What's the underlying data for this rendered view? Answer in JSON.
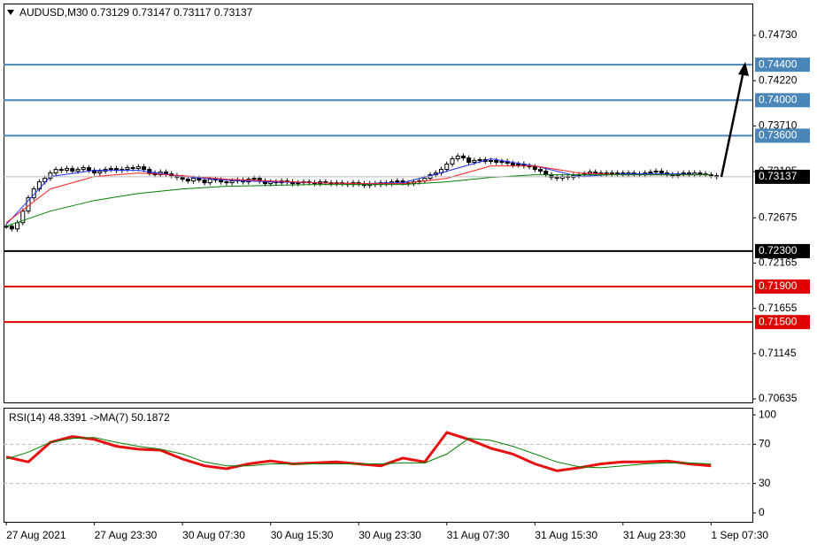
{
  "chart_data": [
    {
      "type": "candlestick",
      "title": "AUDUSD,M30  0.73129 0.73147 0.73117 0.73137",
      "xlim": [
        -0.5,
        135.5
      ],
      "ylim": [
        0.70595,
        0.75089
      ],
      "yticks": [
        {
          "value": 0.7473,
          "label": "0.74730"
        },
        {
          "value": 0.7422,
          "label": "0.74220"
        },
        {
          "value": 0.7371,
          "label": "0.73710"
        },
        {
          "value": 0.73195,
          "label": "0.73195"
        },
        {
          "value": 0.72675,
          "label": "0.72675"
        },
        {
          "value": 0.72165,
          "label": "0.72165"
        },
        {
          "value": 0.71655,
          "label": "0.71655"
        },
        {
          "value": 0.71145,
          "label": "0.71145"
        },
        {
          "value": 0.70635,
          "label": "0.70635"
        }
      ],
      "levels": [
        {
          "value": 0.744,
          "label": "0.74400",
          "color": "#4a86b8"
        },
        {
          "value": 0.74,
          "label": "0.74000",
          "color": "#4a86b8"
        },
        {
          "value": 0.736,
          "label": "0.73600",
          "color": "#4a86b8"
        },
        {
          "value": 0.723,
          "label": "0.72300",
          "color": "#000000"
        },
        {
          "value": 0.719,
          "label": "0.71900",
          "color": "#e00000"
        },
        {
          "value": 0.715,
          "label": "0.71500",
          "color": "#e00000"
        }
      ],
      "last_price": {
        "value": 0.73137,
        "label": "0.73137"
      },
      "series": [
        {
          "type": "candlestick",
          "color": "#000000",
          "values": [
            0.7258,
            0.7255,
            0.7262,
            0.7275,
            0.729,
            0.73,
            0.7308,
            0.7312,
            0.7318,
            0.7322,
            0.7321,
            0.7323,
            0.732,
            0.7322,
            0.7324,
            0.7321,
            0.7318,
            0.732,
            0.7322,
            0.7323,
            0.7321,
            0.7322,
            0.7324,
            0.7323,
            0.7325,
            0.7322,
            0.7318,
            0.7316,
            0.7319,
            0.7317,
            0.7315,
            0.7313,
            0.7311,
            0.7309,
            0.7312,
            0.731,
            0.7307,
            0.7311,
            0.731,
            0.7308,
            0.7307,
            0.7309,
            0.731,
            0.7308,
            0.7311,
            0.7312,
            0.7309,
            0.7306,
            0.7308,
            0.7307,
            0.7309,
            0.7308,
            0.7306,
            0.7307,
            0.7308,
            0.7307,
            0.7306,
            0.7308,
            0.7307,
            0.7306,
            0.7307,
            0.7306,
            0.7305,
            0.7307,
            0.7306,
            0.7304,
            0.7306,
            0.7305,
            0.7307,
            0.7306,
            0.7308,
            0.7309,
            0.7307,
            0.7306,
            0.7308,
            0.7309,
            0.7312,
            0.7316,
            0.7318,
            0.7322,
            0.7328,
            0.7334,
            0.7337,
            0.7335,
            0.733,
            0.7332,
            0.7333,
            0.7331,
            0.7332,
            0.733,
            0.7331,
            0.7329,
            0.7327,
            0.7328,
            0.7326,
            0.7325,
            0.7322,
            0.732,
            0.7316,
            0.7313,
            0.7312,
            0.7314,
            0.7313,
            0.7315,
            0.7316,
            0.7317,
            0.7319,
            0.7318,
            0.7317,
            0.7318,
            0.7317,
            0.7318,
            0.7316,
            0.7318,
            0.7317,
            0.7316,
            0.7318,
            0.7319,
            0.732,
            0.7318,
            0.7316,
            0.7315,
            0.7317,
            0.7318,
            0.7316,
            0.7318,
            0.7317,
            0.7316,
            0.7315,
            0.73137
          ]
        },
        {
          "type": "line",
          "color": "#2030ff",
          "x": [
            0,
            8,
            16,
            24,
            32,
            40,
            48,
            56,
            64,
            72,
            80,
            88,
            96,
            104,
            112,
            120,
            128
          ],
          "values": [
            0.726,
            0.7314,
            0.7321,
            0.7321,
            0.7314,
            0.731,
            0.7308,
            0.7307,
            0.7306,
            0.7307,
            0.732,
            0.7334,
            0.7326,
            0.7314,
            0.7317,
            0.7317,
            0.7316
          ]
        },
        {
          "type": "line",
          "color": "#ff2020",
          "x": [
            0,
            8,
            16,
            24,
            32,
            40,
            48,
            56,
            64,
            72,
            80,
            88,
            96,
            104,
            112,
            120,
            128
          ],
          "values": [
            0.7262,
            0.73,
            0.7314,
            0.7318,
            0.7315,
            0.7311,
            0.7309,
            0.7307,
            0.7306,
            0.7306,
            0.7312,
            0.7326,
            0.7326,
            0.7318,
            0.7316,
            0.7316,
            0.7316
          ]
        },
        {
          "type": "line",
          "color": "#008000",
          "x": [
            0,
            8,
            16,
            24,
            32,
            40,
            48,
            56,
            64,
            72,
            80,
            88,
            96,
            104,
            112,
            120,
            128
          ],
          "values": [
            0.7258,
            0.7275,
            0.7287,
            0.7295,
            0.73,
            0.7303,
            0.7304,
            0.7305,
            0.7305,
            0.7305,
            0.7308,
            0.7313,
            0.7316,
            0.7316,
            0.7316,
            0.7316,
            0.7316
          ]
        }
      ]
    },
    {
      "type": "line",
      "title": "RSI(14) 48.3391  ->MA(7) 50.1872",
      "xlim": [
        -0.5,
        135.5
      ],
      "ylim": [
        -9.1,
        107.3
      ],
      "yticks": [
        0,
        30,
        70,
        100
      ],
      "dashed_levels": [
        30,
        70
      ],
      "xticks": [
        {
          "value": 0,
          "label": "27 Aug 2021"
        },
        {
          "value": 16,
          "label": "27 Aug 23:30"
        },
        {
          "value": 32,
          "label": "30 Aug 07:30"
        },
        {
          "value": 48,
          "label": "30 Aug 15:30"
        },
        {
          "value": 64,
          "label": "30 Aug 23:30"
        },
        {
          "value": 80,
          "label": "31 Aug 07:30"
        },
        {
          "value": 96,
          "label": "31 Aug 15:30"
        },
        {
          "value": 112,
          "label": "31 Aug 23:30"
        },
        {
          "value": 128,
          "label": "1 Sep 07:30"
        }
      ],
      "series": [
        {
          "type": "line",
          "color": "#e81010",
          "width": 3,
          "x": [
            0,
            4,
            8,
            12,
            16,
            20,
            24,
            28,
            32,
            36,
            40,
            44,
            48,
            52,
            56,
            60,
            64,
            68,
            72,
            76,
            80,
            84,
            88,
            92,
            96,
            100,
            104,
            108,
            112,
            116,
            120,
            124,
            128
          ],
          "values": [
            57,
            52,
            72,
            78,
            75,
            68,
            65,
            64,
            55,
            48,
            45,
            50,
            53,
            50,
            51,
            52,
            50,
            48,
            56,
            52,
            82,
            75,
            66,
            60,
            50,
            43,
            46,
            50,
            52,
            52,
            53,
            50,
            48
          ]
        },
        {
          "type": "line",
          "color": "#008000",
          "width": 1,
          "x": [
            0,
            4,
            8,
            12,
            16,
            20,
            24,
            28,
            32,
            36,
            40,
            44,
            48,
            52,
            56,
            60,
            64,
            68,
            72,
            76,
            80,
            84,
            88,
            92,
            96,
            100,
            104,
            108,
            112,
            116,
            120,
            124,
            128
          ],
          "values": [
            55,
            62,
            72,
            76,
            77,
            72,
            68,
            65,
            60,
            52,
            48,
            48,
            50,
            50,
            50,
            50,
            50,
            50,
            51,
            51,
            60,
            76,
            74,
            68,
            60,
            52,
            47,
            46,
            48,
            50,
            51,
            51,
            50
          ]
        }
      ]
    }
  ]
}
